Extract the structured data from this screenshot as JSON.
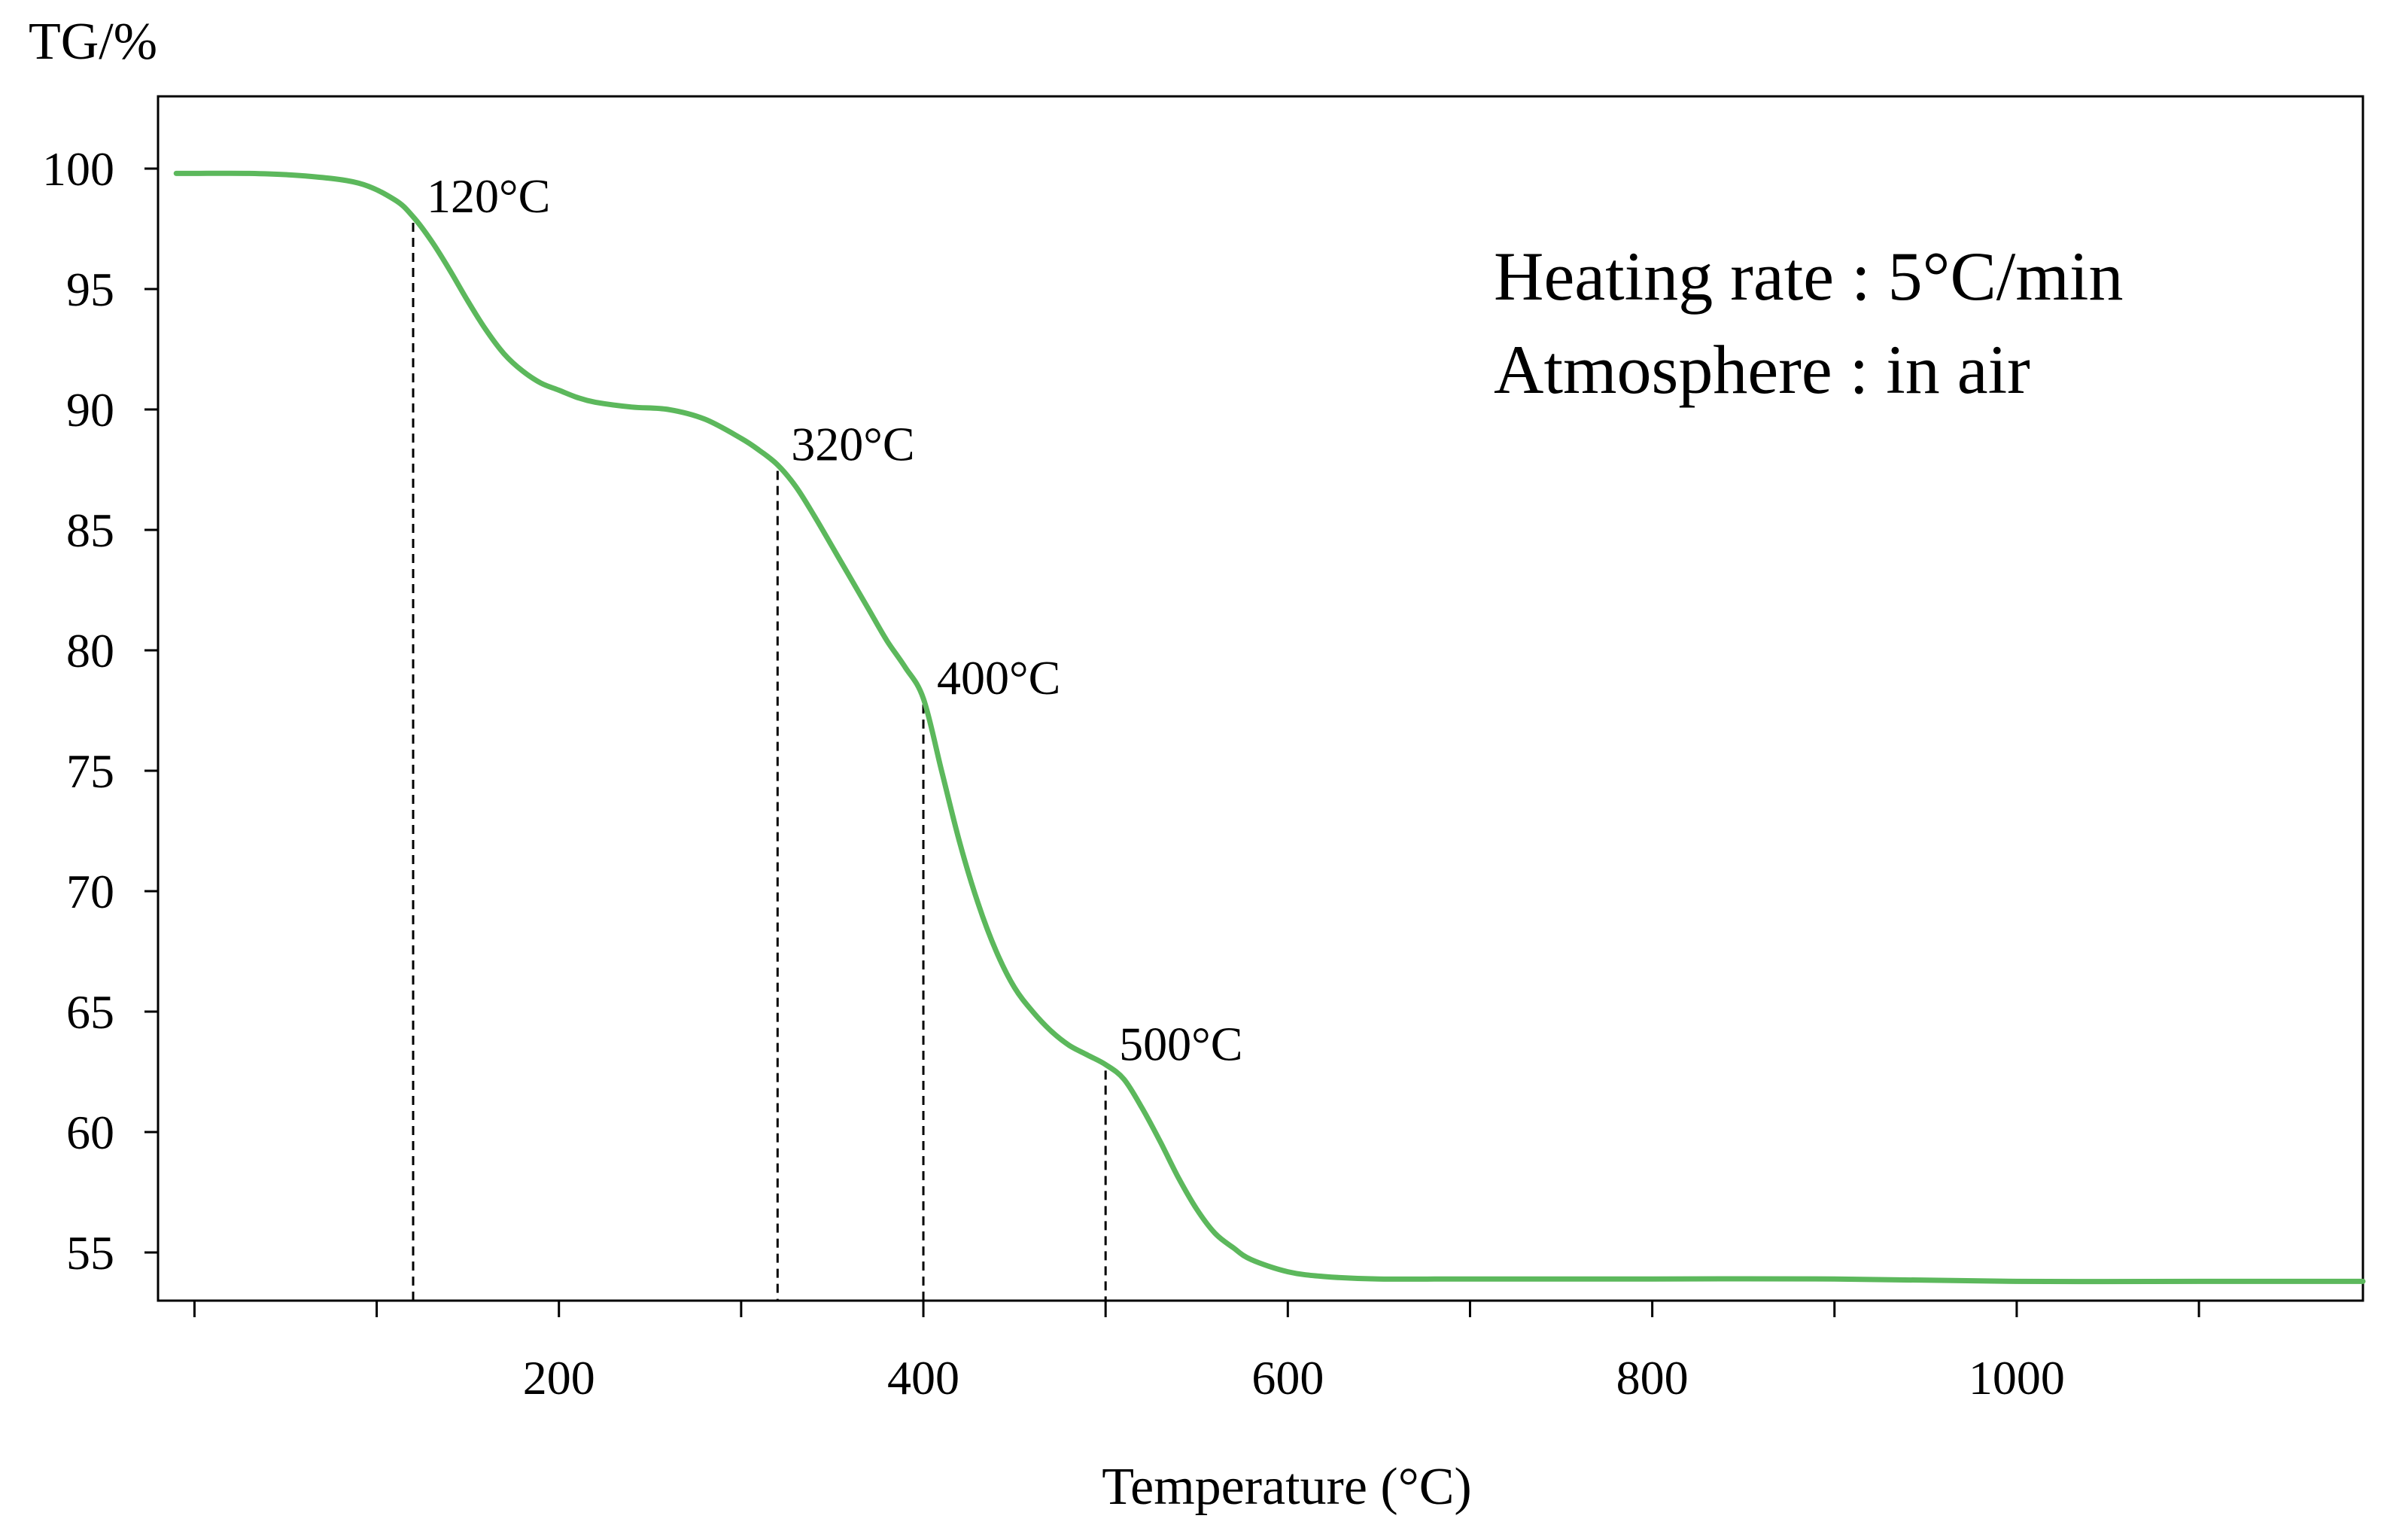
{
  "chart_data": {
    "type": "line",
    "title": "",
    "xlabel": "Temperature (°C)",
    "ylabel": "TG/%",
    "xlim": [
      -20,
      1190
    ],
    "ylim": [
      53,
      103
    ],
    "x_ticks": [
      200,
      400,
      600,
      800,
      1000
    ],
    "y_ticks": [
      55,
      60,
      65,
      70,
      75,
      80,
      85,
      90,
      95,
      100
    ],
    "x_minor_ticks": [
      0,
      100,
      200,
      300,
      400,
      500,
      600,
      700,
      800,
      900,
      1000,
      1100
    ],
    "grid": false,
    "line_color": "#5cb85c",
    "series": [
      {
        "x": [
          -10,
          0,
          30,
          60,
          90,
          110,
          120,
          130,
          140,
          150,
          160,
          170,
          180,
          190,
          200,
          210,
          220,
          240,
          260,
          280,
          300,
          310,
          320,
          330,
          340,
          350,
          360,
          370,
          380,
          390,
          400,
          410,
          420,
          430,
          440,
          450,
          460,
          470,
          480,
          490,
          500,
          510,
          520,
          530,
          540,
          550,
          560,
          570,
          580,
          600,
          620,
          650,
          700,
          800,
          900,
          1000,
          1100,
          1190
        ],
        "y": [
          99.8,
          99.8,
          99.8,
          99.7,
          99.4,
          98.7,
          98.0,
          97.0,
          95.8,
          94.5,
          93.3,
          92.3,
          91.6,
          91.1,
          90.8,
          90.5,
          90.3,
          90.1,
          90.0,
          89.6,
          88.8,
          88.3,
          87.7,
          86.8,
          85.6,
          84.3,
          83.0,
          81.7,
          80.4,
          79.3,
          78.0,
          75.0,
          72.0,
          69.5,
          67.5,
          66.0,
          65.0,
          64.2,
          63.6,
          63.2,
          62.8,
          62.2,
          61.0,
          59.6,
          58.1,
          56.8,
          55.8,
          55.2,
          54.7,
          54.2,
          54.0,
          53.9,
          53.9,
          53.9,
          53.9,
          53.8,
          53.8,
          53.8
        ]
      }
    ],
    "markers": [
      {
        "x": 120,
        "label": "120°C"
      },
      {
        "x": 320,
        "label": "320°C"
      },
      {
        "x": 400,
        "label": "400°C"
      },
      {
        "x": 500,
        "label": "500°C"
      }
    ],
    "info_lines": [
      "Heating rate : 5°C/min",
      "Atmosphere : in air"
    ]
  }
}
